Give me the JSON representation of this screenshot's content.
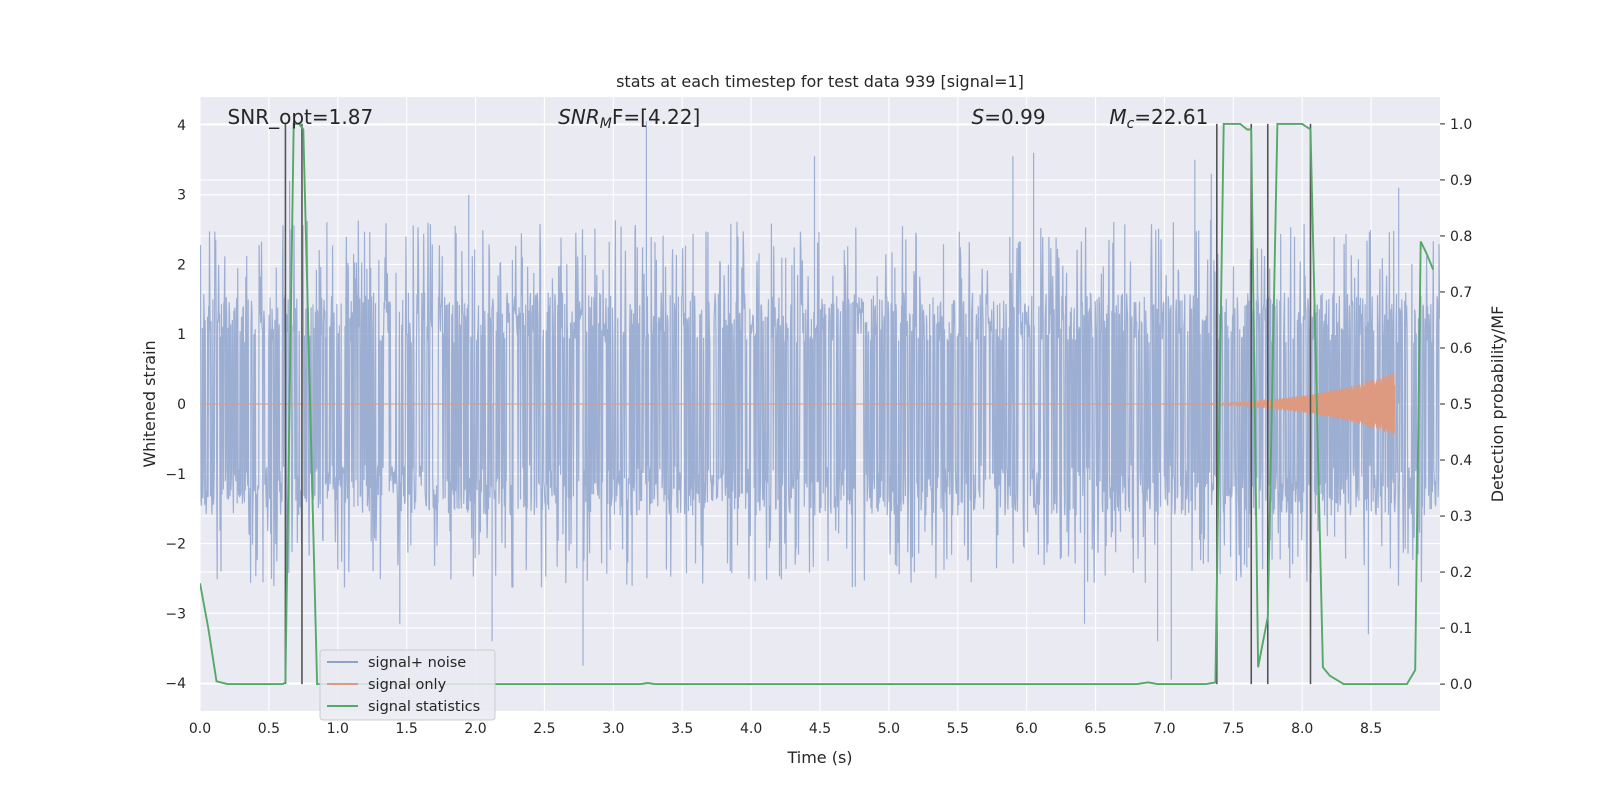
{
  "chart_data": {
    "type": "line",
    "title": "stats at each timestep for test data 939 [signal=1]",
    "xlabel": "Time (s)",
    "ylabel": "Whitened strain",
    "y2label": "Detection probability/MF",
    "xlim": [
      0.0,
      9.0
    ],
    "ylim": [
      -4.4,
      4.4
    ],
    "y2lim": [
      -0.048,
      1.048
    ],
    "x_ticks": [
      0.0,
      0.5,
      1.0,
      1.5,
      2.0,
      2.5,
      3.0,
      3.5,
      4.0,
      4.5,
      5.0,
      5.5,
      6.0,
      6.5,
      7.0,
      7.5,
      8.0,
      8.5
    ],
    "x_tick_labels": [
      "0.0",
      "0.5",
      "1.0",
      "1.5",
      "2.0",
      "2.5",
      "3.0",
      "3.5",
      "4.0",
      "4.5",
      "5.0",
      "5.5",
      "6.0",
      "6.5",
      "7.0",
      "7.5",
      "8.0",
      "8.5"
    ],
    "y_ticks": [
      4,
      3,
      2,
      1,
      0,
      -1,
      -2,
      -3,
      -4
    ],
    "y_tick_labels": [
      "4",
      "3",
      "2",
      "1",
      "0",
      "−1",
      "−2",
      "−3",
      "−4"
    ],
    "y2_ticks": [
      1.0,
      0.9,
      0.8,
      0.7,
      0.6,
      0.5,
      0.4,
      0.3,
      0.2,
      0.1,
      0.0
    ],
    "y2_tick_labels": [
      "1.0",
      "0.9",
      "0.8",
      "0.7",
      "0.6",
      "0.5",
      "0.4",
      "0.3",
      "0.2",
      "0.1",
      "0.0"
    ],
    "grid": true,
    "legend_position": "lower-left",
    "annotations": [
      {
        "prefix": "SNR_opt=1.87",
        "sub": "",
        "suffix": "",
        "italic": false,
        "x": 0.2
      },
      {
        "prefix": "SNR",
        "sub": "M",
        "suffix": "F=[4.22]",
        "italic": true,
        "x": 2.6
      },
      {
        "prefix": "S",
        "sub": "",
        "suffix": "=0.99",
        "italic": true,
        "x": 5.6
      },
      {
        "prefix": "M",
        "sub": "c",
        "suffix": "=22.61",
        "italic": true,
        "x": 6.6
      }
    ],
    "vertical_lines_x": [
      0.62,
      0.74,
      7.38,
      7.63,
      7.75,
      8.06
    ],
    "series": [
      {
        "name": "signal+ noise",
        "axis": "left",
        "color": "#8ea3cc",
        "duration": 9.0,
        "band_core": 1.6,
        "typical_peak": 2.4,
        "spikes": [
          [
            0.62,
            -3.45
          ],
          [
            0.65,
            3.2
          ],
          [
            1.45,
            -3.15
          ],
          [
            1.95,
            3.0
          ],
          [
            2.12,
            -3.4
          ],
          [
            2.78,
            -3.75
          ],
          [
            3.24,
            4.05
          ],
          [
            4.46,
            3.55
          ],
          [
            5.9,
            3.55
          ],
          [
            6.05,
            3.6
          ],
          [
            6.42,
            -3.15
          ],
          [
            6.95,
            -3.4
          ],
          [
            7.05,
            -3.95
          ],
          [
            7.22,
            3.5
          ],
          [
            7.34,
            3.3
          ],
          [
            8.06,
            3.35
          ],
          [
            8.06,
            -3.3
          ],
          [
            8.48,
            -3.3
          ],
          [
            8.7,
            3.1
          ]
        ]
      },
      {
        "name": "signal only",
        "axis": "left",
        "color": "#dd9a80",
        "chirp_start": 6.8,
        "chirp_end": 8.67,
        "peak_amplitude": 0.45
      },
      {
        "name": "signal statistics",
        "axis": "right",
        "color": "#55a868",
        "x": [
          0.0,
          0.06,
          0.12,
          0.2,
          0.4,
          0.6,
          0.62,
          0.68,
          0.72,
          0.75,
          0.85,
          0.9,
          1.2,
          2.0,
          3.0,
          3.2,
          3.25,
          3.3,
          4.0,
          5.0,
          6.0,
          6.8,
          6.88,
          6.95,
          7.1,
          7.3,
          7.37,
          7.43,
          7.55,
          7.6,
          7.63,
          7.68,
          7.75,
          7.82,
          7.85,
          7.9,
          8.0,
          8.06,
          8.15,
          8.2,
          8.3,
          8.5,
          8.7,
          8.76,
          8.82,
          8.86,
          8.9,
          8.95
        ],
        "values": [
          0.18,
          0.1,
          0.005,
          0.0,
          0.0,
          0.0,
          0.003,
          1.0,
          1.0,
          0.99,
          0.0,
          0.0,
          0.0,
          0.0,
          0.0,
          0.0,
          0.002,
          0.0,
          0.0,
          0.0,
          0.0,
          0.0,
          0.003,
          0.0,
          0.0,
          0.0,
          0.003,
          1.0,
          1.0,
          0.99,
          0.99,
          0.03,
          0.12,
          1.0,
          1.0,
          1.0,
          1.0,
          0.99,
          0.03,
          0.015,
          0.0,
          0.0,
          0.0,
          0.0,
          0.025,
          0.79,
          0.77,
          0.74
        ]
      }
    ]
  }
}
